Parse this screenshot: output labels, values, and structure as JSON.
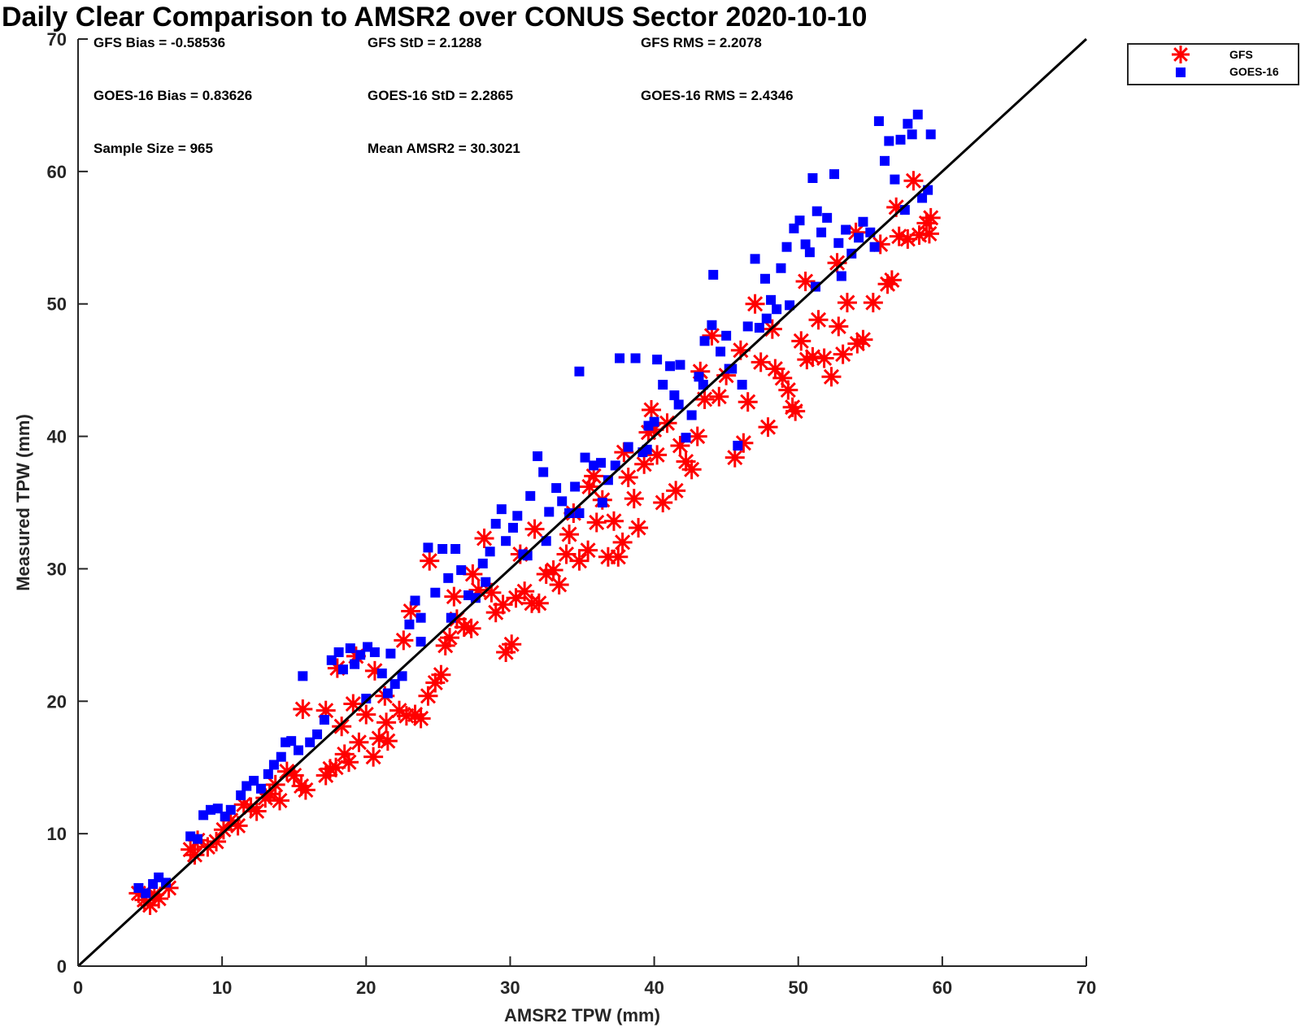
{
  "chart_data": {
    "type": "scatter",
    "title": "Daily Clear Comparison to AMSR2 over CONUS Sector 2020-10-10",
    "xlabel": "AMSR2 TPW (mm)",
    "ylabel": "Measured TPW (mm)",
    "xlim": [
      0,
      70
    ],
    "ylim": [
      0,
      70
    ],
    "xticks": [
      0,
      10,
      20,
      30,
      40,
      50,
      60,
      70
    ],
    "yticks": [
      0,
      10,
      20,
      30,
      40,
      50,
      60,
      70
    ],
    "grid": false,
    "legend_position": "outside top-right",
    "reference_line": {
      "x": [
        0,
        70
      ],
      "y": [
        0,
        70
      ],
      "color": "#000000"
    },
    "stats": [
      "GFS Bias = -0.58536",
      "GFS StD = 2.1288",
      "GFS RMS = 2.2078",
      "GOES-16 Bias = 0.83626",
      "GOES-16 StD = 2.2865",
      "GOES-16 RMS = 2.4346",
      "Sample Size = 965",
      "Mean AMSR2 = 30.3021"
    ],
    "series": [
      {
        "name": "GFS",
        "marker": "asterisk",
        "color": "#ff0000",
        "points": [
          [
            4.2,
            5.5
          ],
          [
            4.6,
            5.0
          ],
          [
            5.0,
            4.6
          ],
          [
            5.3,
            5.4
          ],
          [
            5.6,
            5.1
          ],
          [
            6.3,
            5.9
          ],
          [
            7.8,
            8.8
          ],
          [
            8.1,
            8.4
          ],
          [
            8.3,
            9.5
          ],
          [
            9.0,
            9.0
          ],
          [
            9.6,
            9.4
          ],
          [
            10.1,
            10.3
          ],
          [
            10.6,
            11.0
          ],
          [
            11.1,
            10.6
          ],
          [
            11.5,
            12.2
          ],
          [
            12.0,
            12.0
          ],
          [
            12.4,
            11.7
          ],
          [
            13.0,
            12.7
          ],
          [
            13.3,
            13.0
          ],
          [
            13.7,
            13.7
          ],
          [
            14.0,
            12.5
          ],
          [
            14.5,
            14.7
          ],
          [
            15.0,
            14.4
          ],
          [
            15.5,
            13.6
          ],
          [
            15.8,
            13.3
          ],
          [
            15.6,
            19.4
          ],
          [
            17.2,
            19.3
          ],
          [
            17.2,
            14.4
          ],
          [
            17.5,
            14.9
          ],
          [
            17.9,
            15.0
          ],
          [
            18.3,
            18.1
          ],
          [
            18.5,
            16.0
          ],
          [
            18.8,
            15.4
          ],
          [
            19.1,
            19.8
          ],
          [
            19.5,
            16.9
          ],
          [
            20.0,
            19.0
          ],
          [
            20.5,
            15.8
          ],
          [
            20.9,
            17.2
          ],
          [
            21.4,
            18.4
          ],
          [
            21.5,
            17.0
          ],
          [
            22.3,
            19.3
          ],
          [
            22.8,
            18.9
          ],
          [
            23.4,
            19.0
          ],
          [
            23.8,
            18.7
          ],
          [
            24.3,
            20.4
          ],
          [
            24.4,
            30.6
          ],
          [
            24.8,
            21.4
          ],
          [
            25.2,
            22.0
          ],
          [
            25.5,
            24.2
          ],
          [
            25.8,
            24.8
          ],
          [
            26.3,
            26.2
          ],
          [
            26.8,
            25.6
          ],
          [
            27.3,
            25.5
          ],
          [
            27.8,
            28.4
          ],
          [
            28.2,
            32.3
          ],
          [
            28.7,
            28.2
          ],
          [
            29.0,
            26.7
          ],
          [
            29.5,
            27.3
          ],
          [
            29.7,
            23.7
          ],
          [
            30.1,
            24.3
          ],
          [
            30.4,
            27.8
          ],
          [
            31.0,
            28.3
          ],
          [
            31.5,
            27.4
          ],
          [
            32.0,
            27.4
          ],
          [
            32.5,
            29.6
          ],
          [
            33.0,
            29.9
          ],
          [
            33.4,
            28.8
          ],
          [
            33.9,
            31.1
          ],
          [
            34.4,
            34.2
          ],
          [
            34.8,
            30.6
          ],
          [
            35.4,
            31.4
          ],
          [
            35.5,
            36.2
          ],
          [
            36.0,
            33.5
          ],
          [
            36.4,
            35.2
          ],
          [
            36.8,
            30.9
          ],
          [
            37.2,
            33.6
          ],
          [
            37.5,
            30.9
          ],
          [
            37.8,
            32.0
          ],
          [
            38.2,
            36.9
          ],
          [
            38.6,
            35.3
          ],
          [
            38.9,
            33.1
          ],
          [
            39.3,
            37.9
          ],
          [
            39.6,
            40.3
          ],
          [
            39.8,
            42.0
          ],
          [
            40.2,
            38.6
          ],
          [
            40.6,
            35.0
          ],
          [
            40.9,
            41.0
          ],
          [
            41.5,
            35.9
          ],
          [
            41.8,
            39.3
          ],
          [
            42.2,
            38.1
          ],
          [
            42.6,
            37.5
          ],
          [
            43.0,
            40.0
          ],
          [
            43.5,
            42.8
          ],
          [
            44.0,
            47.6
          ],
          [
            44.5,
            43.0
          ],
          [
            45.0,
            44.6
          ],
          [
            45.6,
            38.4
          ],
          [
            46.2,
            39.5
          ],
          [
            46.5,
            42.6
          ],
          [
            47.0,
            50.0
          ],
          [
            47.4,
            45.6
          ],
          [
            47.9,
            40.7
          ],
          [
            48.4,
            45.1
          ],
          [
            48.9,
            44.4
          ],
          [
            49.3,
            43.5
          ],
          [
            49.6,
            42.2
          ],
          [
            49.8,
            41.9
          ],
          [
            50.2,
            47.2
          ],
          [
            50.6,
            45.8
          ],
          [
            51.0,
            46.0
          ],
          [
            51.4,
            48.8
          ],
          [
            51.8,
            45.9
          ],
          [
            52.3,
            44.5
          ],
          [
            52.8,
            48.3
          ],
          [
            53.1,
            46.2
          ],
          [
            53.4,
            50.1
          ],
          [
            54.1,
            47.0
          ],
          [
            54.5,
            47.3
          ],
          [
            55.2,
            50.1
          ],
          [
            55.7,
            54.5
          ],
          [
            56.2,
            51.5
          ],
          [
            56.5,
            51.8
          ],
          [
            57.0,
            55.1
          ],
          [
            57.6,
            54.9
          ],
          [
            58.0,
            59.3
          ],
          [
            58.4,
            55.2
          ],
          [
            58.9,
            56.1
          ],
          [
            59.2,
            56.5
          ],
          [
            59.1,
            55.3
          ],
          [
            18.0,
            22.5
          ],
          [
            19.3,
            23.4
          ],
          [
            20.6,
            22.3
          ],
          [
            21.3,
            20.4
          ],
          [
            22.6,
            24.6
          ],
          [
            23.1,
            26.8
          ],
          [
            26.1,
            27.9
          ],
          [
            27.4,
            29.6
          ],
          [
            30.7,
            31.1
          ],
          [
            31.7,
            33.0
          ],
          [
            34.1,
            32.6
          ],
          [
            35.8,
            37.0
          ],
          [
            37.9,
            38.8
          ],
          [
            40.0,
            40.5
          ],
          [
            43.2,
            44.9
          ],
          [
            46.0,
            46.5
          ],
          [
            48.2,
            48.1
          ],
          [
            50.5,
            51.7
          ],
          [
            52.7,
            53.1
          ],
          [
            54.0,
            55.4
          ],
          [
            56.8,
            57.3
          ]
        ]
      },
      {
        "name": "GOES-16",
        "marker": "square",
        "color": "#0000ff",
        "points": [
          [
            4.2,
            5.9
          ],
          [
            4.7,
            5.5
          ],
          [
            5.2,
            6.2
          ],
          [
            5.6,
            6.7
          ],
          [
            6.1,
            6.3
          ],
          [
            7.8,
            9.8
          ],
          [
            8.3,
            9.6
          ],
          [
            8.7,
            11.4
          ],
          [
            9.2,
            11.8
          ],
          [
            9.7,
            11.9
          ],
          [
            10.2,
            11.3
          ],
          [
            10.6,
            11.8
          ],
          [
            11.3,
            12.9
          ],
          [
            11.7,
            13.6
          ],
          [
            12.2,
            14.0
          ],
          [
            12.7,
            13.4
          ],
          [
            13.2,
            14.5
          ],
          [
            13.6,
            15.2
          ],
          [
            14.1,
            15.8
          ],
          [
            14.4,
            16.9
          ],
          [
            14.8,
            17.0
          ],
          [
            15.3,
            16.3
          ],
          [
            15.6,
            21.9
          ],
          [
            16.1,
            16.9
          ],
          [
            16.6,
            17.5
          ],
          [
            17.1,
            18.6
          ],
          [
            17.6,
            23.1
          ],
          [
            18.1,
            23.7
          ],
          [
            18.4,
            22.4
          ],
          [
            18.9,
            24.0
          ],
          [
            19.2,
            22.8
          ],
          [
            19.6,
            23.5
          ],
          [
            20.1,
            24.1
          ],
          [
            20.6,
            23.7
          ],
          [
            21.1,
            22.1
          ],
          [
            21.7,
            23.6
          ],
          [
            22.0,
            21.3
          ],
          [
            22.5,
            21.9
          ],
          [
            23.0,
            25.8
          ],
          [
            23.4,
            27.6
          ],
          [
            23.8,
            26.3
          ],
          [
            24.3,
            31.6
          ],
          [
            24.8,
            28.2
          ],
          [
            25.3,
            31.5
          ],
          [
            25.7,
            29.3
          ],
          [
            26.2,
            31.5
          ],
          [
            26.6,
            29.9
          ],
          [
            27.1,
            28.0
          ],
          [
            27.6,
            27.8
          ],
          [
            28.1,
            30.4
          ],
          [
            28.6,
            31.3
          ],
          [
            29.0,
            33.4
          ],
          [
            29.4,
            34.5
          ],
          [
            29.7,
            32.1
          ],
          [
            30.2,
            33.1
          ],
          [
            30.5,
            34.0
          ],
          [
            30.9,
            31.1
          ],
          [
            31.4,
            35.5
          ],
          [
            31.9,
            38.5
          ],
          [
            32.3,
            37.3
          ],
          [
            32.7,
            34.3
          ],
          [
            33.2,
            36.1
          ],
          [
            33.6,
            35.1
          ],
          [
            34.1,
            34.2
          ],
          [
            34.5,
            36.2
          ],
          [
            34.8,
            44.9
          ],
          [
            35.2,
            38.4
          ],
          [
            35.8,
            37.8
          ],
          [
            36.3,
            38.0
          ],
          [
            36.8,
            36.7
          ],
          [
            37.3,
            37.8
          ],
          [
            37.6,
            45.9
          ],
          [
            38.2,
            39.2
          ],
          [
            38.7,
            45.9
          ],
          [
            39.2,
            38.8
          ],
          [
            39.6,
            40.8
          ],
          [
            40.0,
            41.1
          ],
          [
            40.2,
            45.8
          ],
          [
            40.6,
            43.9
          ],
          [
            41.1,
            45.3
          ],
          [
            41.4,
            43.1
          ],
          [
            41.8,
            45.4
          ],
          [
            42.2,
            39.9
          ],
          [
            42.6,
            41.6
          ],
          [
            43.1,
            44.5
          ],
          [
            43.5,
            47.2
          ],
          [
            44.0,
            48.4
          ],
          [
            44.1,
            52.2
          ],
          [
            44.6,
            46.4
          ],
          [
            45.0,
            47.6
          ],
          [
            45.4,
            45.1
          ],
          [
            45.8,
            39.3
          ],
          [
            46.1,
            43.9
          ],
          [
            46.5,
            48.3
          ],
          [
            47.0,
            53.4
          ],
          [
            47.3,
            48.2
          ],
          [
            47.7,
            51.9
          ],
          [
            48.1,
            50.3
          ],
          [
            48.5,
            49.6
          ],
          [
            48.8,
            52.7
          ],
          [
            49.2,
            54.3
          ],
          [
            49.7,
            55.7
          ],
          [
            50.1,
            56.3
          ],
          [
            50.5,
            54.5
          ],
          [
            50.8,
            53.9
          ],
          [
            51.0,
            59.5
          ],
          [
            51.3,
            57.0
          ],
          [
            51.6,
            55.4
          ],
          [
            52.0,
            56.5
          ],
          [
            52.5,
            59.8
          ],
          [
            52.8,
            54.6
          ],
          [
            53.3,
            55.6
          ],
          [
            53.7,
            53.8
          ],
          [
            54.2,
            55.0
          ],
          [
            54.5,
            56.2
          ],
          [
            55.0,
            55.4
          ],
          [
            55.6,
            63.8
          ],
          [
            56.0,
            60.8
          ],
          [
            56.3,
            62.3
          ],
          [
            56.7,
            59.4
          ],
          [
            57.1,
            62.4
          ],
          [
            57.6,
            63.6
          ],
          [
            57.9,
            62.8
          ],
          [
            58.3,
            64.3
          ],
          [
            58.6,
            58.0
          ],
          [
            59.2,
            62.8
          ],
          [
            59.0,
            58.6
          ],
          [
            20.0,
            20.2
          ],
          [
            21.5,
            20.6
          ],
          [
            23.8,
            24.5
          ],
          [
            25.9,
            26.3
          ],
          [
            28.3,
            29.0
          ],
          [
            31.2,
            31.0
          ],
          [
            32.5,
            32.1
          ],
          [
            34.8,
            34.2
          ],
          [
            36.4,
            35.0
          ],
          [
            39.5,
            39.0
          ],
          [
            41.7,
            42.4
          ],
          [
            43.4,
            43.9
          ],
          [
            45.2,
            45.1
          ],
          [
            47.8,
            48.9
          ],
          [
            49.4,
            49.9
          ],
          [
            51.2,
            51.3
          ],
          [
            53.0,
            52.1
          ],
          [
            55.3,
            54.3
          ],
          [
            57.4,
            57.1
          ]
        ]
      }
    ]
  }
}
